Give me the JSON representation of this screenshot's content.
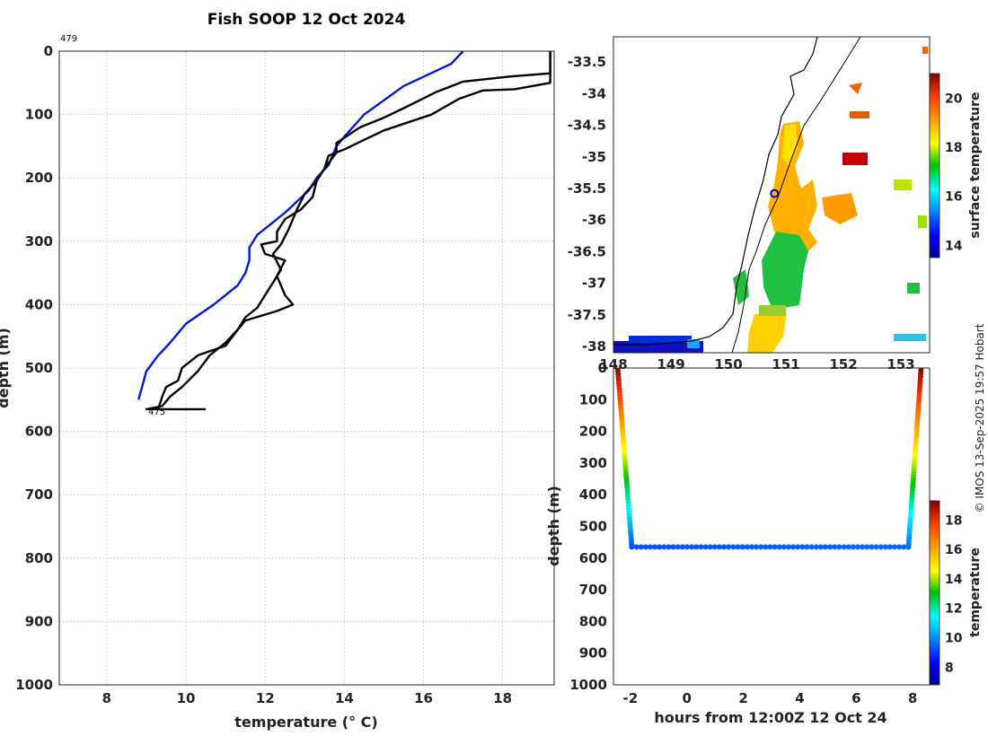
{
  "colors": {
    "xbt_profile": "#000000",
    "climatology_profile": "#0018d8",
    "track_marker": "#0000cc"
  },
  "figure": {
    "title": "Fish SOOP 12 Oct 2024",
    "credit": "© IMOS 13-Sep-2025 19:57 Hobart"
  },
  "chart_data": [
    {
      "type": "line",
      "name": "temperature-depth-profile",
      "xlabel": "temperature (° C)",
      "ylabel": "depth (m)",
      "xlim": [
        6.8,
        19.3
      ],
      "ylim": [
        1000,
        0
      ],
      "xticks": [
        8,
        10,
        12,
        14,
        16,
        18
      ],
      "yticks": [
        0,
        100,
        200,
        300,
        400,
        500,
        600,
        700,
        800,
        900,
        1000
      ],
      "grid": true,
      "annotations": [
        {
          "text": "479",
          "at_depth": 0,
          "at_temperature": 7.0
        },
        {
          "text": "475",
          "at_depth": 567,
          "at_temperature": 9.2
        }
      ],
      "series": [
        {
          "name": "climatology",
          "color_key": "climatology_profile",
          "points": [
            [
              17.0,
              0
            ],
            [
              16.7,
              20
            ],
            [
              15.5,
              55
            ],
            [
              14.5,
              100
            ],
            [
              14.0,
              135
            ],
            [
              13.8,
              150
            ],
            [
              13.6,
              180
            ],
            [
              13.3,
              200
            ],
            [
              13.1,
              220
            ],
            [
              12.5,
              255
            ],
            [
              12.0,
              280
            ],
            [
              11.8,
              290
            ],
            [
              11.6,
              310
            ],
            [
              11.6,
              330
            ],
            [
              11.5,
              350
            ],
            [
              11.3,
              370
            ],
            [
              10.7,
              400
            ],
            [
              10.0,
              430
            ],
            [
              9.6,
              460
            ],
            [
              9.3,
              480
            ],
            [
              9.0,
              505
            ],
            [
              8.8,
              550
            ]
          ]
        },
        {
          "name": "xbt-drop-1",
          "color_key": "xbt_profile",
          "points": [
            [
              19.2,
              0
            ],
            [
              19.2,
              35
            ],
            [
              18.2,
              40
            ],
            [
              17.0,
              48
            ],
            [
              16.3,
              65
            ],
            [
              15.5,
              90
            ],
            [
              15.0,
              105
            ],
            [
              14.4,
              120
            ],
            [
              13.8,
              145
            ],
            [
              13.8,
              160
            ],
            [
              13.5,
              185
            ],
            [
              13.3,
              205
            ],
            [
              13.2,
              230
            ],
            [
              12.9,
              250
            ],
            [
              12.5,
              265
            ],
            [
              12.3,
              285
            ],
            [
              12.3,
              300
            ],
            [
              11.9,
              305
            ],
            [
              12.0,
              320
            ],
            [
              12.5,
              330
            ],
            [
              12.3,
              355
            ],
            [
              12.5,
              385
            ],
            [
              12.7,
              400
            ],
            [
              12.3,
              410
            ],
            [
              11.5,
              425
            ],
            [
              11.3,
              440
            ],
            [
              11.0,
              465
            ],
            [
              10.3,
              480
            ],
            [
              9.9,
              500
            ],
            [
              9.8,
              520
            ],
            [
              9.5,
              530
            ],
            [
              9.4,
              545
            ],
            [
              9.3,
              565
            ]
          ]
        },
        {
          "name": "xbt-drop-2",
          "color_key": "xbt_profile",
          "points": [
            [
              19.2,
              0
            ],
            [
              19.2,
              50
            ],
            [
              18.3,
              60
            ],
            [
              17.5,
              62
            ],
            [
              16.9,
              75
            ],
            [
              16.2,
              100
            ],
            [
              15.0,
              125
            ],
            [
              14.5,
              140
            ],
            [
              14.0,
              155
            ],
            [
              13.6,
              165
            ],
            [
              13.5,
              185
            ],
            [
              13.3,
              205
            ],
            [
              13.0,
              225
            ],
            [
              12.8,
              250
            ],
            [
              12.6,
              280
            ],
            [
              12.4,
              305
            ],
            [
              12.2,
              320
            ],
            [
              12.4,
              345
            ],
            [
              12.2,
              365
            ],
            [
              12.0,
              385
            ],
            [
              11.8,
              405
            ],
            [
              11.5,
              420
            ],
            [
              11.3,
              440
            ],
            [
              11.0,
              460
            ],
            [
              10.6,
              480
            ],
            [
              10.3,
              505
            ],
            [
              9.9,
              530
            ],
            [
              9.6,
              545
            ],
            [
              9.4,
              560
            ],
            [
              9.0,
              565
            ],
            [
              10.5,
              565
            ]
          ]
        }
      ]
    },
    {
      "type": "heatmap",
      "name": "surface-temperature-map",
      "xlim": [
        148.0,
        153.5
      ],
      "ylim": [
        -38.1,
        -33.1
      ],
      "xticks": [
        148,
        149,
        150,
        151,
        152,
        153
      ],
      "xtick_labels": [
        "148",
        "149",
        "150",
        "151",
        "152",
        "153"
      ],
      "yticks": [
        -33.5,
        -34,
        -34.5,
        -35,
        -35.5,
        -36,
        -36.5,
        -37,
        -37.5,
        -38
      ],
      "colorbar_label": "surface temperature",
      "colorbar_range": [
        13.5,
        21.0
      ],
      "colorbar_ticks": [
        14,
        16,
        18,
        20
      ],
      "track_point": {
        "lon": 150.8,
        "lat": -35.58
      }
    },
    {
      "type": "scatter",
      "name": "depth-time-section",
      "xlabel": "hours from 12:00Z 12 Oct 24",
      "ylabel": "depth (m)",
      "xlim": [
        -2.6,
        8.6
      ],
      "ylim": [
        1000,
        0
      ],
      "xticks": [
        -2,
        0,
        2,
        4,
        6,
        8
      ],
      "yticks": [
        0,
        100,
        200,
        300,
        400,
        500,
        600,
        700,
        800,
        900,
        1000
      ],
      "colorbar_label": "temperature",
      "colorbar_range": [
        6.8,
        19.3
      ],
      "colorbar_ticks": [
        8,
        10,
        12,
        14,
        16,
        18
      ],
      "segments": [
        {
          "name": "descent",
          "points": [
            [
              -2.45,
              0,
              19.2
            ],
            [
              -1.95,
              565,
              9.3
            ]
          ]
        },
        {
          "name": "bottom",
          "points": [
            [
              -1.95,
              565,
              9.3
            ],
            [
              7.85,
              565,
              9.6
            ]
          ]
        },
        {
          "name": "ascent",
          "points": [
            [
              7.85,
              565,
              9.6
            ],
            [
              8.3,
              0,
              19.2
            ]
          ]
        }
      ]
    }
  ]
}
